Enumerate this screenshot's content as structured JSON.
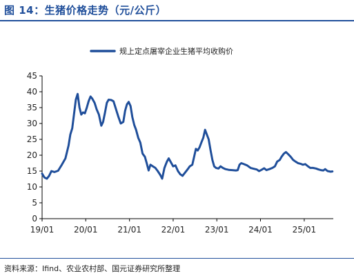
{
  "header": {
    "title": "图 14：生猪价格走势（元/公斤）"
  },
  "footer": {
    "source": "资料来源：Ifind、农业农村部、国元证券研究所整理"
  },
  "colors": {
    "title": "#1f4e9a",
    "series": "#1f4e9a",
    "axis": "#000000"
  },
  "chart_data": {
    "type": "line",
    "legend_position": "top",
    "grid": false,
    "ylim": [
      0,
      45
    ],
    "y_ticks": [
      0,
      5,
      10,
      15,
      20,
      25,
      30,
      35,
      40,
      45
    ],
    "xlim": [
      "2019-01-01",
      "2025-09-01"
    ],
    "x_ticks": [
      {
        "label": "19/01",
        "date": "2019-01-01"
      },
      {
        "label": "20/01",
        "date": "2020-01-01"
      },
      {
        "label": "21/01",
        "date": "2021-01-01"
      },
      {
        "label": "22/01",
        "date": "2022-01-01"
      },
      {
        "label": "23/01",
        "date": "2023-01-01"
      },
      {
        "label": "24/01",
        "date": "2024-01-01"
      },
      {
        "label": "25/01",
        "date": "2025-01-01"
      }
    ],
    "series": [
      {
        "name": "规上定点屠宰企业生猪平均收购价",
        "color": "#1f4e9a",
        "points": [
          [
            "2019-01-01",
            14.2
          ],
          [
            "2019-01-20",
            13.0
          ],
          [
            "2019-02-10",
            12.6
          ],
          [
            "2019-03-01",
            13.5
          ],
          [
            "2019-03-20",
            15.0
          ],
          [
            "2019-04-15",
            14.7
          ],
          [
            "2019-05-15",
            15.1
          ],
          [
            "2019-06-15",
            17.0
          ],
          [
            "2019-07-15",
            19.0
          ],
          [
            "2019-08-10",
            23.0
          ],
          [
            "2019-08-25",
            26.5
          ],
          [
            "2019-09-10",
            28.5
          ],
          [
            "2019-09-25",
            33.0
          ],
          [
            "2019-10-10",
            37.5
          ],
          [
            "2019-10-25",
            39.3
          ],
          [
            "2019-11-10",
            35.0
          ],
          [
            "2019-11-25",
            32.8
          ],
          [
            "2019-12-10",
            33.5
          ],
          [
            "2019-12-25",
            33.2
          ],
          [
            "2020-01-10",
            35.0
          ],
          [
            "2020-01-25",
            37.0
          ],
          [
            "2020-02-10",
            38.5
          ],
          [
            "2020-02-25",
            37.8
          ],
          [
            "2020-03-15",
            36.5
          ],
          [
            "2020-04-01",
            34.5
          ],
          [
            "2020-04-20",
            32.8
          ],
          [
            "2020-05-10",
            29.3
          ],
          [
            "2020-05-25",
            30.5
          ],
          [
            "2020-06-10",
            33.5
          ],
          [
            "2020-06-25",
            36.5
          ],
          [
            "2020-07-10",
            37.5
          ],
          [
            "2020-08-01",
            37.4
          ],
          [
            "2020-08-20",
            37.0
          ],
          [
            "2020-09-10",
            34.5
          ],
          [
            "2020-10-01",
            32.0
          ],
          [
            "2020-10-20",
            30.0
          ],
          [
            "2020-11-10",
            30.5
          ],
          [
            "2020-11-25",
            34.0
          ],
          [
            "2020-12-10",
            36.0
          ],
          [
            "2020-12-25",
            36.8
          ],
          [
            "2021-01-10",
            35.5
          ],
          [
            "2021-01-25",
            32.0
          ],
          [
            "2021-02-10",
            29.5
          ],
          [
            "2021-02-25",
            28.0
          ],
          [
            "2021-03-15",
            25.5
          ],
          [
            "2021-04-01",
            24.0
          ],
          [
            "2021-04-20",
            20.5
          ],
          [
            "2021-05-10",
            19.5
          ],
          [
            "2021-05-25",
            17.5
          ],
          [
            "2021-06-10",
            15.2
          ],
          [
            "2021-06-25",
            17.0
          ],
          [
            "2021-07-15",
            16.5
          ],
          [
            "2021-08-05",
            16.0
          ],
          [
            "2021-08-25",
            15.0
          ],
          [
            "2021-09-15",
            13.8
          ],
          [
            "2021-10-01",
            12.6
          ],
          [
            "2021-10-20",
            16.0
          ],
          [
            "2021-11-10",
            18.0
          ],
          [
            "2021-11-25",
            19.0
          ],
          [
            "2021-12-10",
            18.0
          ],
          [
            "2022-01-01",
            16.5
          ],
          [
            "2022-01-20",
            16.8
          ],
          [
            "2022-02-10",
            15.0
          ],
          [
            "2022-03-01",
            14.0
          ],
          [
            "2022-03-20",
            13.5
          ],
          [
            "2022-04-10",
            14.5
          ],
          [
            "2022-05-01",
            15.5
          ],
          [
            "2022-05-20",
            16.5
          ],
          [
            "2022-06-10",
            17.0
          ],
          [
            "2022-06-25",
            19.5
          ],
          [
            "2022-07-10",
            22.0
          ],
          [
            "2022-07-25",
            21.5
          ],
          [
            "2022-08-10",
            22.5
          ],
          [
            "2022-08-25",
            24.0
          ],
          [
            "2022-09-10",
            25.5
          ],
          [
            "2022-09-25",
            28.0
          ],
          [
            "2022-10-10",
            26.5
          ],
          [
            "2022-10-25",
            25.0
          ],
          [
            "2022-11-10",
            21.5
          ],
          [
            "2022-11-25",
            18.5
          ],
          [
            "2022-12-10",
            16.5
          ],
          [
            "2022-12-25",
            16.0
          ],
          [
            "2023-01-15",
            15.8
          ],
          [
            "2023-02-01",
            16.5
          ],
          [
            "2023-02-20",
            16.0
          ],
          [
            "2023-03-15",
            15.6
          ],
          [
            "2023-04-10",
            15.4
          ],
          [
            "2023-05-10",
            15.3
          ],
          [
            "2023-06-10",
            15.2
          ],
          [
            "2023-06-25",
            15.3
          ],
          [
            "2023-07-10",
            17.0
          ],
          [
            "2023-07-25",
            17.5
          ],
          [
            "2023-08-15",
            17.2
          ],
          [
            "2023-09-10",
            16.8
          ],
          [
            "2023-10-10",
            16.0
          ],
          [
            "2023-11-10",
            15.7
          ],
          [
            "2023-12-01",
            15.5
          ],
          [
            "2023-12-20",
            15.0
          ],
          [
            "2024-01-10",
            15.4
          ],
          [
            "2024-02-01",
            15.9
          ],
          [
            "2024-02-20",
            15.3
          ],
          [
            "2024-03-15",
            15.6
          ],
          [
            "2024-04-10",
            16.0
          ],
          [
            "2024-05-01",
            16.5
          ],
          [
            "2024-05-20",
            18.0
          ],
          [
            "2024-06-10",
            18.5
          ],
          [
            "2024-06-25",
            19.5
          ],
          [
            "2024-07-15",
            20.5
          ],
          [
            "2024-08-01",
            21.0
          ],
          [
            "2024-08-20",
            20.3
          ],
          [
            "2024-09-10",
            19.5
          ],
          [
            "2024-10-01",
            18.5
          ],
          [
            "2024-10-20",
            18.0
          ],
          [
            "2024-11-10",
            17.5
          ],
          [
            "2024-12-01",
            17.3
          ],
          [
            "2024-12-20",
            17.0
          ],
          [
            "2025-01-10",
            17.2
          ],
          [
            "2025-02-01",
            16.5
          ],
          [
            "2025-02-20",
            16.0
          ],
          [
            "2025-03-15",
            16.0
          ],
          [
            "2025-04-10",
            15.8
          ],
          [
            "2025-05-01",
            15.5
          ],
          [
            "2025-05-20",
            15.3
          ],
          [
            "2025-06-10",
            15.2
          ],
          [
            "2025-06-25",
            15.6
          ],
          [
            "2025-07-15",
            15.0
          ],
          [
            "2025-08-10",
            14.8
          ],
          [
            "2025-08-25",
            14.9
          ]
        ]
      }
    ]
  }
}
